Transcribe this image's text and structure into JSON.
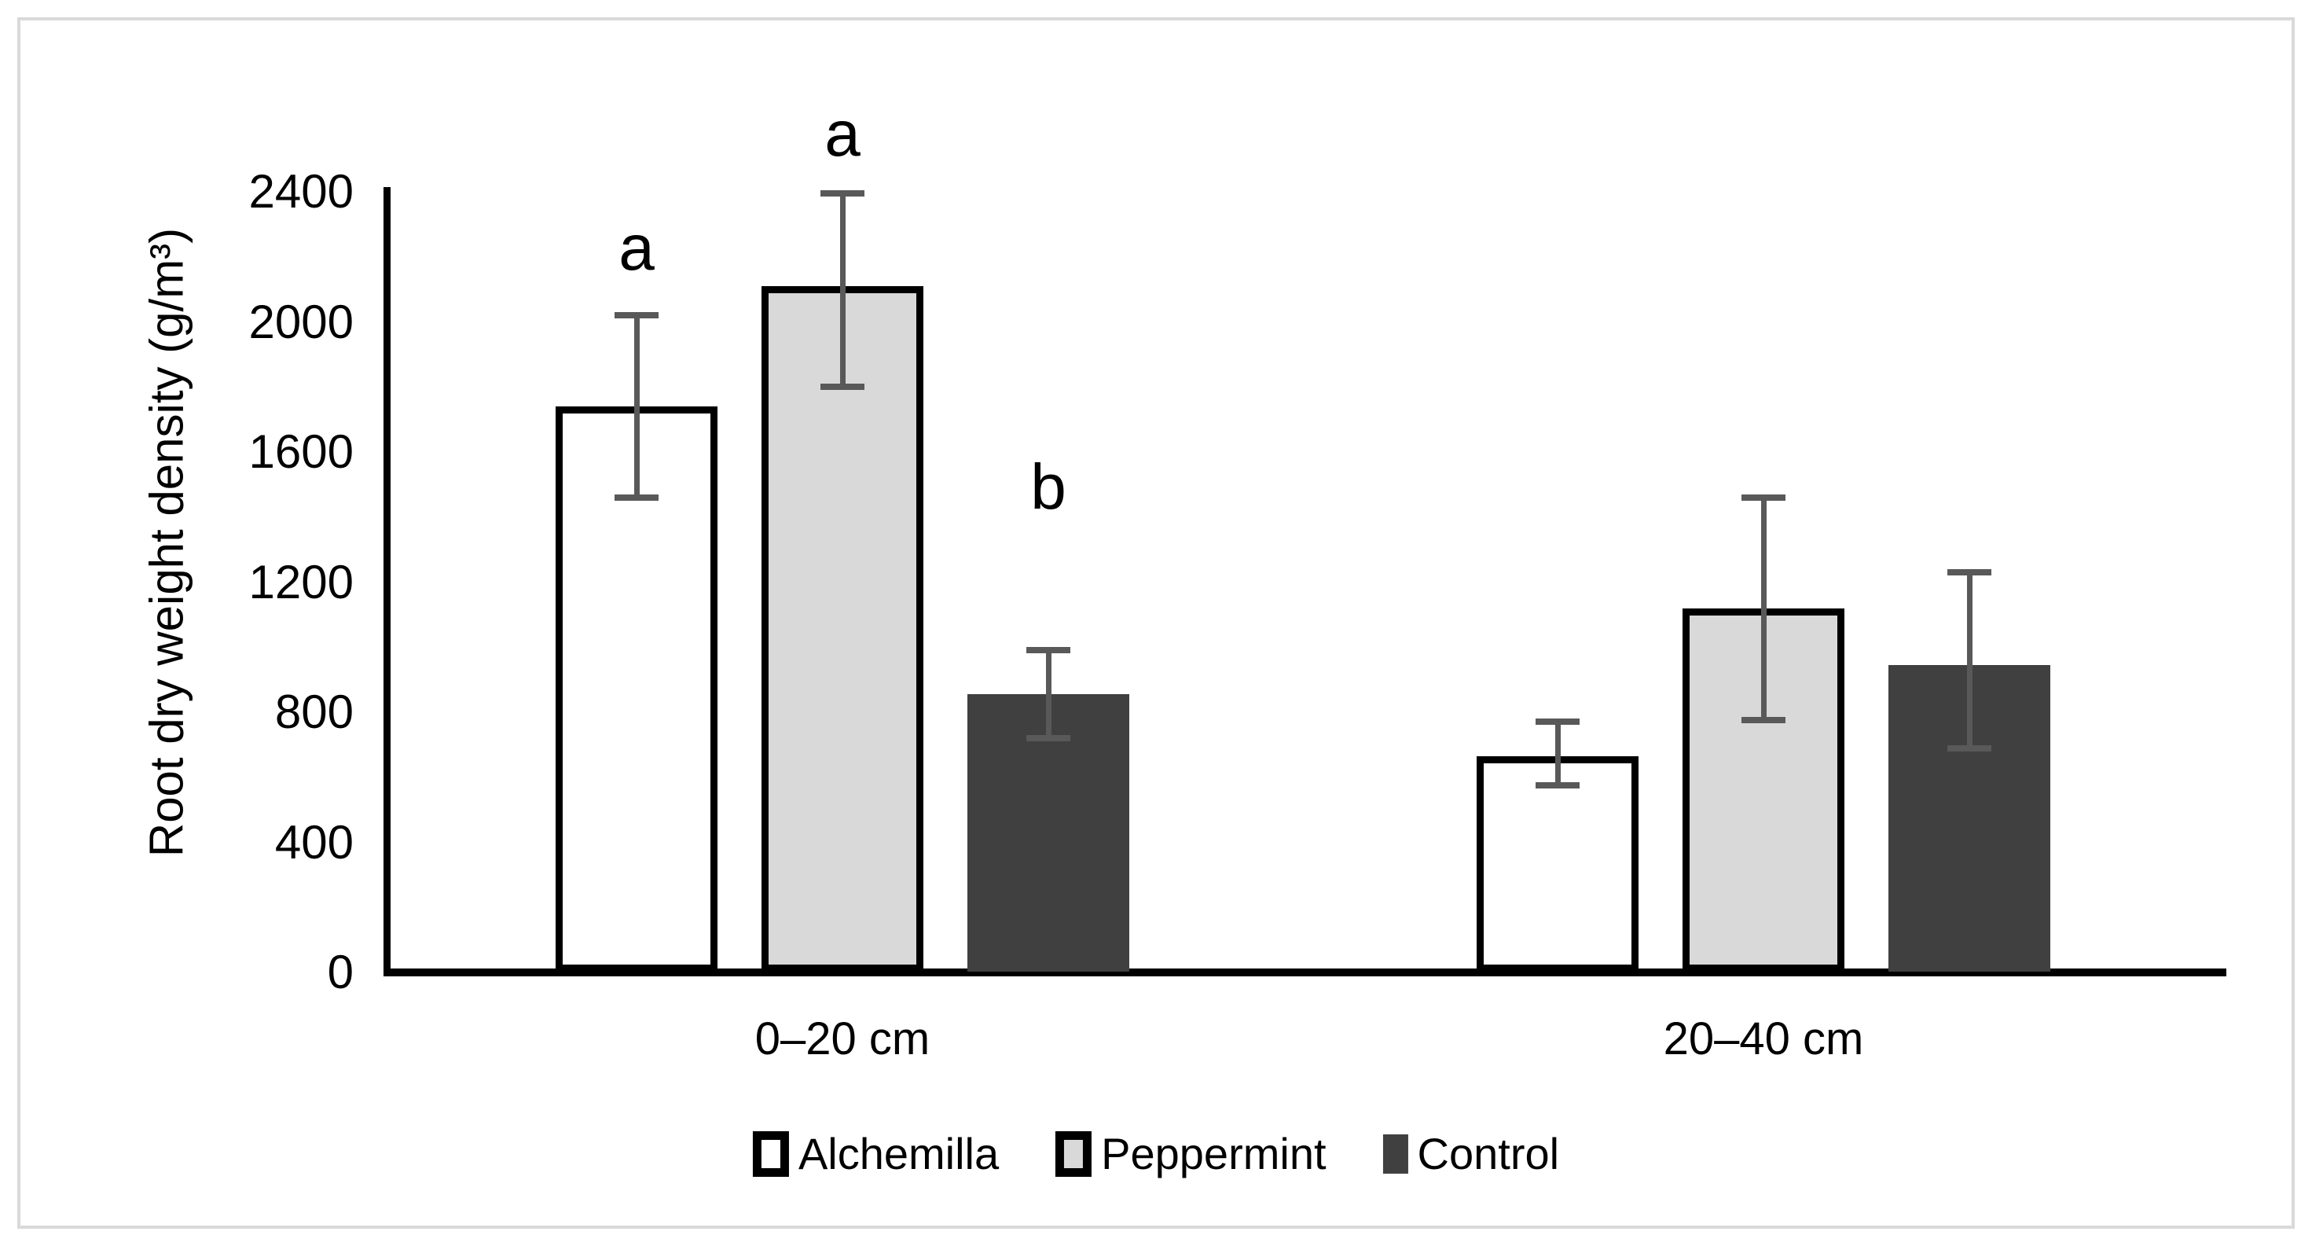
{
  "figure": {
    "background_color": "#ffffff",
    "frame_color": "#d9d9d9",
    "text_color": "#000000"
  },
  "chart_data": {
    "type": "bar",
    "title": "",
    "xlabel": "",
    "ylabel": "Root dry weight density (g/m³)",
    "categories": [
      "0–20 cm",
      "20–40 cm"
    ],
    "yticks": [
      0,
      400,
      800,
      1200,
      1600,
      2000,
      2400
    ],
    "ylim": [
      0,
      2400
    ],
    "grid": false,
    "legend_position": "bottom-center",
    "axis_color": "#000000",
    "error_bar_color": "#595959",
    "series": [
      {
        "name": "Alchemilla",
        "fill": "#ffffff",
        "border": "#000000",
        "values": [
          1740,
          665
        ],
        "error_low": [
          1460,
          575
        ],
        "error_high": [
          2020,
          770
        ],
        "sig_letters": [
          "a",
          ""
        ]
      },
      {
        "name": "Peppermint",
        "fill": "#d9d9d9",
        "border": "#000000",
        "values": [
          2110,
          1120
        ],
        "error_low": [
          1800,
          775
        ],
        "error_high": [
          2395,
          1460
        ],
        "sig_letters": [
          "a",
          ""
        ]
      },
      {
        "name": "Control",
        "fill": "#404040",
        "border": null,
        "values": [
          855,
          945
        ],
        "error_low": [
          720,
          690
        ],
        "error_high": [
          990,
          1230
        ],
        "sig_letters": [
          "b",
          ""
        ]
      }
    ]
  }
}
